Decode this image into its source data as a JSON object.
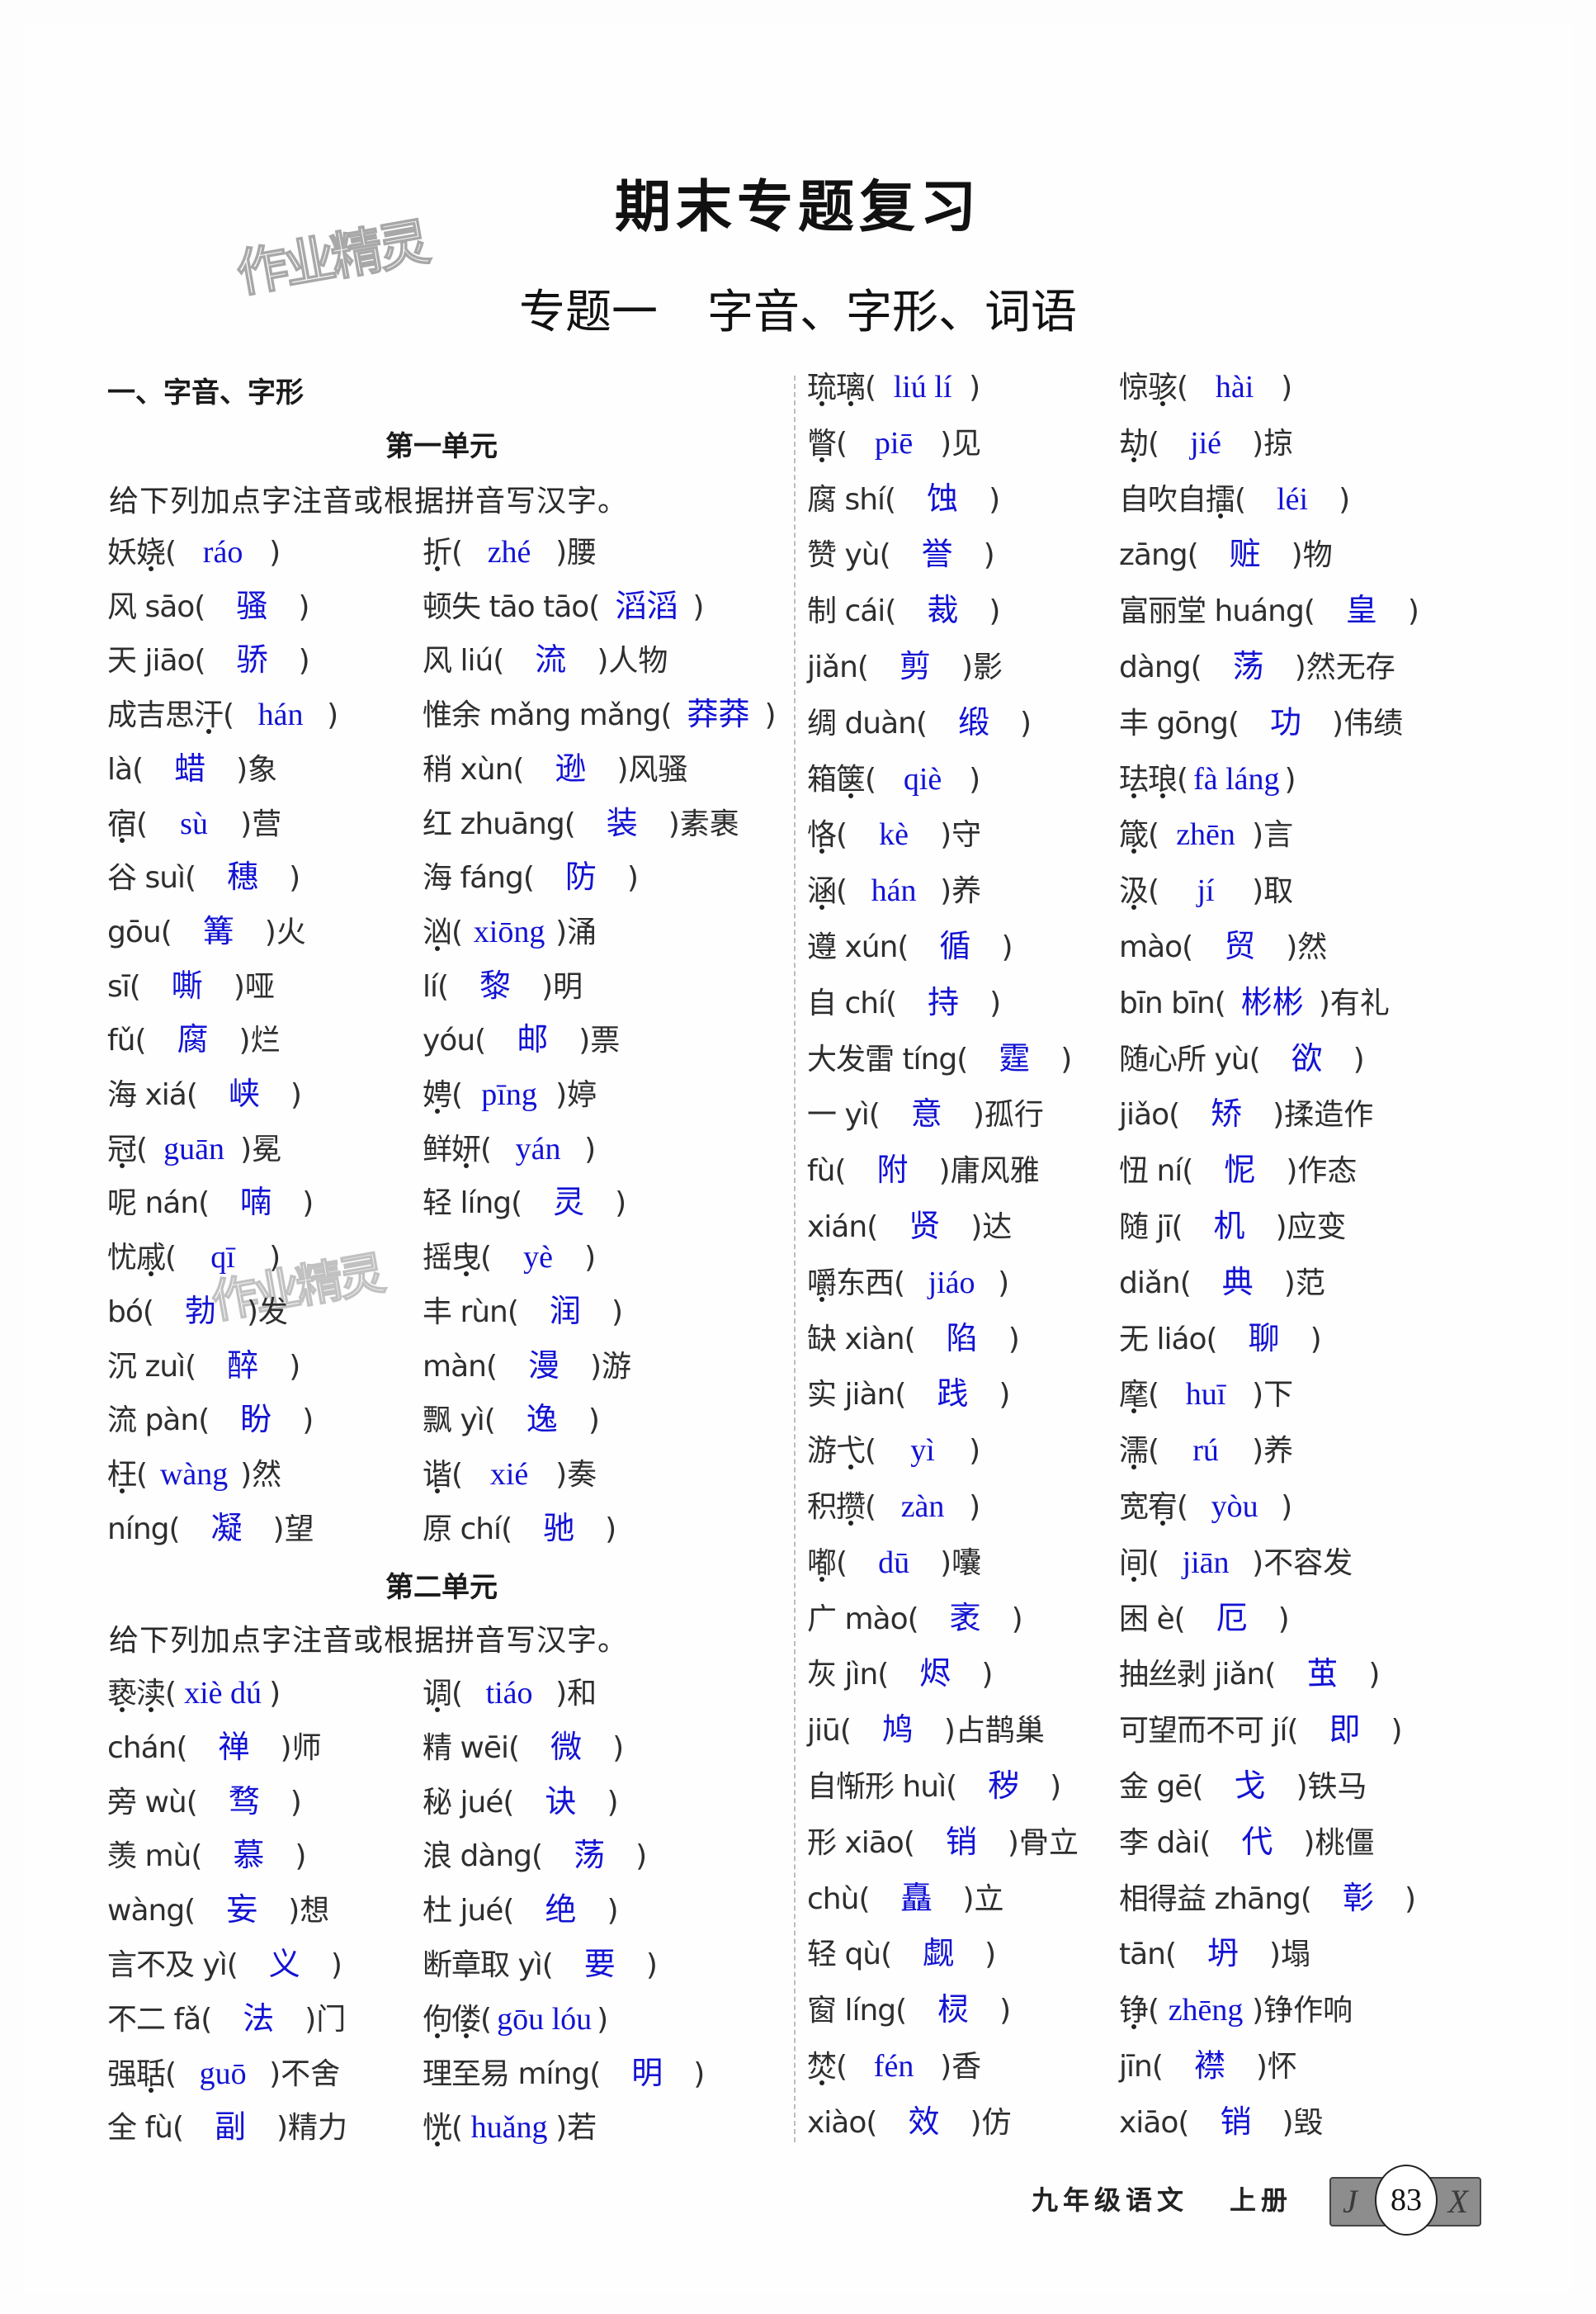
{
  "header": {
    "title": "期末专题复习",
    "subtitle_a": "专题一",
    "subtitle_b": "字音、字形、词语"
  },
  "watermark": "作业精灵",
  "section_heading": "一、字音、字形",
  "units": [
    {
      "title": "第一单元",
      "instruction": "给下列加点字注音或根据拼音写汉字。",
      "rows": [
        [
          {
            "q": "妖娆",
            "a": "ráo",
            "s": "",
            "dots": [
              1
            ]
          },
          {
            "q": "折",
            "a": "zhé",
            "s": "腰",
            "dots": [
              0
            ]
          }
        ],
        [
          {
            "q": "风 sāo",
            "a": "骚",
            "s": ""
          },
          {
            "q": "顿失 tāo tāo",
            "a": "滔滔",
            "s": ""
          }
        ],
        [
          {
            "q": "天 jiāo",
            "a": "骄",
            "s": ""
          },
          {
            "q": "风 liú",
            "a": "流",
            "s": "人物"
          }
        ],
        [
          {
            "q": "成吉思汗",
            "a": "hán",
            "s": "",
            "dots": [
              3
            ]
          },
          {
            "q": "惟余 mǎng mǎng",
            "a": "莽莽",
            "s": ""
          }
        ],
        [
          {
            "q": "là",
            "a": "蜡",
            "s": "象"
          },
          {
            "q": "稍 xùn",
            "a": "逊",
            "s": "风骚"
          }
        ],
        [
          {
            "q": "宿",
            "a": "sù",
            "s": "营",
            "dots": [
              0
            ]
          },
          {
            "q": "红 zhuāng",
            "a": "装",
            "s": "素裹"
          }
        ],
        [
          {
            "q": "谷 suì",
            "a": "穗",
            "s": ""
          },
          {
            "q": "海 fáng",
            "a": "防",
            "s": ""
          }
        ],
        [
          {
            "q": "gōu",
            "a": "篝",
            "s": "火"
          },
          {
            "q": "汹",
            "a": "xiōng",
            "s": "涌",
            "dots": [
              0
            ]
          }
        ],
        [
          {
            "q": "sī",
            "a": "嘶",
            "s": "哑"
          },
          {
            "q": "lí",
            "a": "黎",
            "s": "明"
          }
        ],
        [
          {
            "q": "fǔ",
            "a": "腐",
            "s": "烂"
          },
          {
            "q": "yóu",
            "a": "邮",
            "s": "票"
          }
        ],
        [
          {
            "q": "海 xiá",
            "a": "峡",
            "s": ""
          },
          {
            "q": "娉",
            "a": "pīng",
            "s": "婷",
            "dots": [
              0
            ]
          }
        ],
        [
          {
            "q": "冠",
            "a": "guān",
            "s": "冕",
            "dots": [
              0
            ]
          },
          {
            "q": "鲜妍",
            "a": "yán",
            "s": "",
            "dots": [
              1
            ]
          }
        ],
        [
          {
            "q": "呢 nán",
            "a": "喃",
            "s": ""
          },
          {
            "q": "轻 líng",
            "a": "灵",
            "s": ""
          }
        ],
        [
          {
            "q": "忧戚",
            "a": "qī",
            "s": "",
            "dots": [
              1
            ]
          },
          {
            "q": "摇曳",
            "a": "yè",
            "s": "",
            "dots": [
              1
            ]
          }
        ],
        [
          {
            "q": "bó",
            "a": "勃",
            "s": "发"
          },
          {
            "q": "丰 rùn",
            "a": "润",
            "s": ""
          }
        ],
        [
          {
            "q": "沉 zuì",
            "a": "醉",
            "s": ""
          },
          {
            "q": "màn",
            "a": "漫",
            "s": "游"
          }
        ],
        [
          {
            "q": "流 pàn",
            "a": "盼",
            "s": ""
          },
          {
            "q": "飘 yì",
            "a": "逸",
            "s": ""
          }
        ],
        [
          {
            "q": "枉",
            "a": "wàng",
            "s": "然",
            "dots": [
              0
            ]
          },
          {
            "q": "谐",
            "a": "xié",
            "s": "奏",
            "dots": [
              0
            ]
          }
        ],
        [
          {
            "q": "níng",
            "a": "凝",
            "s": "望"
          },
          {
            "q": "原 chí",
            "a": "驰",
            "s": ""
          }
        ]
      ]
    },
    {
      "title": "第二单元",
      "instruction": "给下列加点字注音或根据拼音写汉字。",
      "rows": [
        [
          {
            "q": "亵渎",
            "a": "xiè dú",
            "s": "",
            "dots": [
              0,
              1
            ]
          },
          {
            "q": "调",
            "a": "tiáo",
            "s": "和",
            "dots": [
              0
            ]
          }
        ],
        [
          {
            "q": "chán",
            "a": "禅",
            "s": "师"
          },
          {
            "q": "精 wēi",
            "a": "微",
            "s": ""
          }
        ],
        [
          {
            "q": "旁 wù",
            "a": "骛",
            "s": ""
          },
          {
            "q": "秘 jué",
            "a": "诀",
            "s": ""
          }
        ],
        [
          {
            "q": "羡 mù",
            "a": "慕",
            "s": ""
          },
          {
            "q": "浪 dàng",
            "a": "荡",
            "s": ""
          }
        ],
        [
          {
            "q": "wàng",
            "a": "妄",
            "s": "想"
          },
          {
            "q": "杜 jué",
            "a": "绝",
            "s": ""
          }
        ],
        [
          {
            "q": "言不及 yì",
            "a": "义",
            "s": ""
          },
          {
            "q": "断章取 yì",
            "a": "要",
            "s": ""
          }
        ],
        [
          {
            "q": "不二 fǎ",
            "a": "法",
            "s": "门"
          },
          {
            "q": "佝偻",
            "a": "gōu lóu",
            "s": "",
            "dots": [
              0,
              1
            ]
          }
        ],
        [
          {
            "q": "强聒",
            "a": "guō",
            "s": "不舍",
            "dots": [
              1
            ]
          },
          {
            "q": "理至易 míng",
            "a": "明",
            "s": ""
          }
        ],
        [
          {
            "q": "全 fù",
            "a": "副",
            "s": "精力"
          },
          {
            "q": "恍",
            "a": "huǎng",
            "s": "若",
            "dots": [
              0
            ]
          }
        ]
      ]
    }
  ],
  "right_rows": [
    [
      {
        "q": "琉璃",
        "a": "liú lí",
        "s": "",
        "dots": [
          0,
          1
        ]
      },
      {
        "q": "惊骇",
        "a": "hài",
        "s": "",
        "dots": [
          1
        ]
      }
    ],
    [
      {
        "q": "瞥",
        "a": "piē",
        "s": "见",
        "dots": [
          0
        ]
      },
      {
        "q": "劫",
        "a": "jié",
        "s": "掠",
        "dots": [
          0
        ]
      }
    ],
    [
      {
        "q": "腐 shí",
        "a": "蚀",
        "s": ""
      },
      {
        "q": "自吹自擂",
        "a": "léi",
        "s": "",
        "dots": [
          3
        ]
      }
    ],
    [
      {
        "q": "赞 yù",
        "a": "誉",
        "s": ""
      },
      {
        "q": "zāng",
        "a": "赃",
        "s": "物"
      }
    ],
    [
      {
        "q": "制 cái",
        "a": "裁",
        "s": ""
      },
      {
        "q": "富丽堂 huáng",
        "a": "皇",
        "s": ""
      }
    ],
    [
      {
        "q": "jiǎn",
        "a": "剪",
        "s": "影"
      },
      {
        "q": "dàng",
        "a": "荡",
        "s": "然无存"
      }
    ],
    [
      {
        "q": "绸 duàn",
        "a": "缎",
        "s": ""
      },
      {
        "q": "丰 gōng",
        "a": "功",
        "s": "伟绩"
      }
    ],
    [
      {
        "q": "箱箧",
        "a": "qiè",
        "s": "",
        "dots": [
          1
        ]
      },
      {
        "q": "珐琅",
        "a": "fà láng",
        "s": "",
        "dots": [
          0,
          1
        ]
      }
    ],
    [
      {
        "q": "恪",
        "a": "kè",
        "s": "守",
        "dots": [
          0
        ]
      },
      {
        "q": "箴",
        "a": "zhēn",
        "s": "言",
        "dots": [
          0
        ]
      }
    ],
    [
      {
        "q": "涵",
        "a": "hán",
        "s": "养",
        "dots": [
          0
        ]
      },
      {
        "q": "汲",
        "a": "jí",
        "s": "取",
        "dots": [
          0
        ]
      }
    ],
    [
      {
        "q": "遵 xún",
        "a": "循",
        "s": ""
      },
      {
        "q": "mào",
        "a": "贸",
        "s": "然"
      }
    ],
    [
      {
        "q": "自 chí",
        "a": "持",
        "s": ""
      },
      {
        "q": "bīn bīn",
        "a": "彬彬",
        "s": "有礼"
      }
    ],
    [
      {
        "q": "大发雷 tíng",
        "a": "霆",
        "s": ""
      },
      {
        "q": "随心所 yù",
        "a": "欲",
        "s": ""
      }
    ],
    [
      {
        "q": "一 yì",
        "a": "意",
        "s": "孤行"
      },
      {
        "q": "jiǎo",
        "a": "矫",
        "s": "揉造作"
      }
    ],
    [
      {
        "q": "fù",
        "a": "附",
        "s": "庸风雅"
      },
      {
        "q": "忸 ní",
        "a": "怩",
        "s": "作态"
      }
    ],
    [
      {
        "q": "xián",
        "a": "贤",
        "s": "达"
      },
      {
        "q": "随 jī",
        "a": "机",
        "s": "应变"
      }
    ],
    [
      {
        "q": "嚼东西",
        "a": "jiáo",
        "s": "",
        "dots": [
          0
        ]
      },
      {
        "q": "diǎn",
        "a": "典",
        "s": "范"
      }
    ],
    [
      {
        "q": "缺 xiàn",
        "a": "陷",
        "s": ""
      },
      {
        "q": "无 liáo",
        "a": "聊",
        "s": ""
      }
    ],
    [
      {
        "q": "实 jiàn",
        "a": "践",
        "s": ""
      },
      {
        "q": "麾",
        "a": "huī",
        "s": "下",
        "dots": [
          0
        ]
      }
    ],
    [
      {
        "q": "游弋",
        "a": "yì",
        "s": "",
        "dots": [
          1
        ]
      },
      {
        "q": "濡",
        "a": "rú",
        "s": "养",
        "dots": [
          0
        ]
      }
    ],
    [
      {
        "q": "积攒",
        "a": "zàn",
        "s": "",
        "dots": [
          1
        ]
      },
      {
        "q": "宽宥",
        "a": "yòu",
        "s": "",
        "dots": [
          1
        ]
      }
    ],
    [
      {
        "q": "嘟",
        "a": "dū",
        "s": "囔",
        "dots": [
          0
        ]
      },
      {
        "q": "间",
        "a": "jiān",
        "s": "不容发",
        "dots": [
          0
        ]
      }
    ],
    [
      {
        "q": "广 mào",
        "a": "袤",
        "s": ""
      },
      {
        "q": "困 è",
        "a": "厄",
        "s": ""
      }
    ],
    [
      {
        "q": "灰 jìn",
        "a": "烬",
        "s": ""
      },
      {
        "q": "抽丝剥 jiǎn",
        "a": "茧",
        "s": ""
      }
    ],
    [
      {
        "q": "jiū",
        "a": "鸠",
        "s": "占鹊巢"
      },
      {
        "q": "可望而不可 jí",
        "a": "即",
        "s": ""
      }
    ],
    [
      {
        "q": "自惭形 huì",
        "a": "秽",
        "s": ""
      },
      {
        "q": "金 gē",
        "a": "戈",
        "s": "铁马"
      }
    ],
    [
      {
        "q": "形 xiāo",
        "a": "销",
        "s": "骨立"
      },
      {
        "q": "李 dài",
        "a": "代",
        "s": "桃僵"
      }
    ],
    [
      {
        "q": "chù",
        "a": "矗",
        "s": "立"
      },
      {
        "q": "相得益 zhāng",
        "a": "彰",
        "s": ""
      }
    ],
    [
      {
        "q": "轻 qù",
        "a": "觑",
        "s": ""
      },
      {
        "q": "tān",
        "a": "坍",
        "s": "塌"
      }
    ],
    [
      {
        "q": "窗 líng",
        "a": "棂",
        "s": ""
      },
      {
        "q": "铮",
        "a": "zhēng",
        "s": "铮作响",
        "dots": [
          0
        ]
      }
    ],
    [
      {
        "q": "焚",
        "a": "fén",
        "s": "香",
        "dots": [
          0
        ]
      },
      {
        "q": "jīn",
        "a": "襟",
        "s": "怀"
      }
    ],
    [
      {
        "q": "xiào",
        "a": "效",
        "s": "仿"
      },
      {
        "q": "xiāo",
        "a": "销",
        "s": "毁"
      }
    ]
  ],
  "footer": {
    "grade": "九年级语文",
    "volume": "上册",
    "page_number": "83",
    "badge_left": "J",
    "badge_right": "X"
  },
  "colors": {
    "answer": "#1212d4",
    "text": "#2e2e2e"
  }
}
